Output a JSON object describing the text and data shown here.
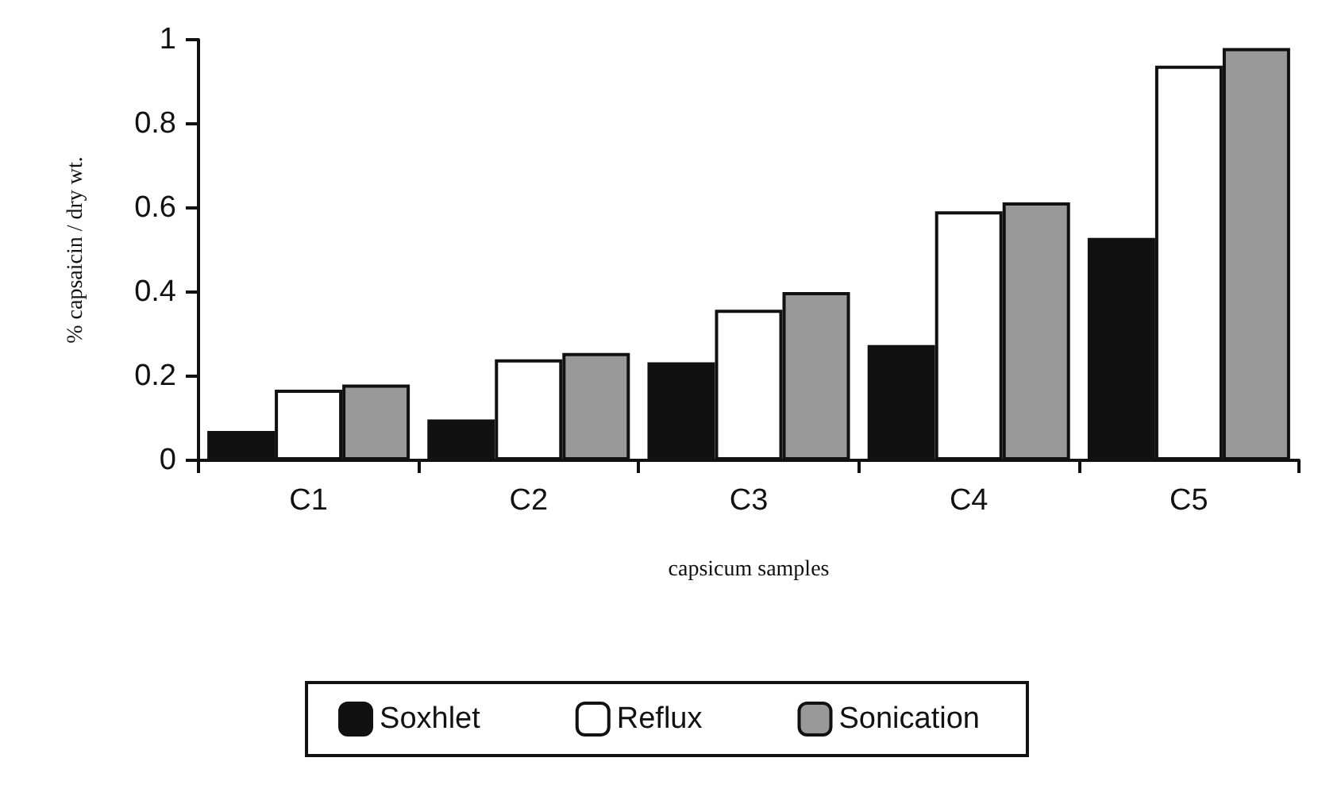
{
  "chart_data": {
    "type": "bar",
    "xlabel": "capsicum samples",
    "ylabel": "% capsaicin / dry wt.",
    "categories": [
      "C1",
      "C2",
      "C3",
      "C4",
      "C5"
    ],
    "series": [
      {
        "name": "Soxhlet",
        "color": "#111111",
        "values": [
          0.07,
          0.097,
          0.233,
          0.274,
          0.529
        ]
      },
      {
        "name": "Reflux",
        "color": "#ffffff",
        "values": [
          0.168,
          0.24,
          0.358,
          0.592,
          0.938
        ]
      },
      {
        "name": "Sonication",
        "color": "#999999",
        "values": [
          0.18,
          0.255,
          0.4,
          0.613,
          0.98
        ]
      }
    ],
    "ylim": [
      0,
      1
    ],
    "yticks": [
      0,
      0.2,
      0.4,
      0.6,
      0.8,
      1
    ],
    "grid": false,
    "legend": "bottom"
  }
}
